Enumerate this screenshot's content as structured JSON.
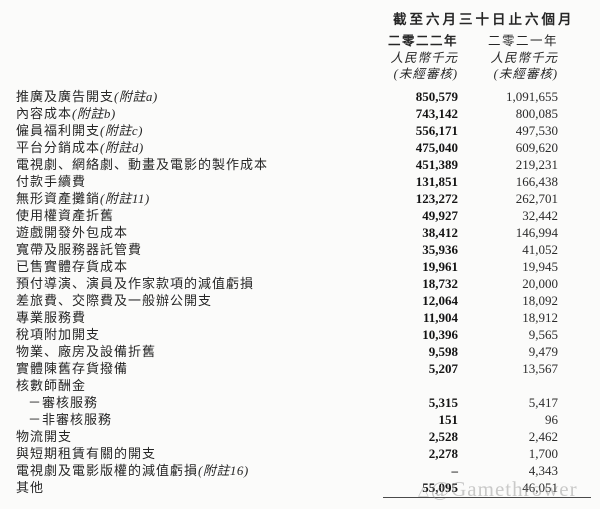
{
  "header": {
    "period_title": "截至六月三十日止六個月",
    "columns": [
      {
        "year": "二零二二年",
        "unit": "人民幣千元",
        "audited": "(未經審核)"
      },
      {
        "year": "二零二一年",
        "unit": "人民幣千元",
        "audited": "(未經審核)"
      }
    ]
  },
  "table": {
    "currency_note": "人民幣千元",
    "rows": [
      {
        "label": "推廣及廣告開支",
        "note": "(附註a)",
        "v2022": "850,579",
        "v2021": "1,091,655",
        "indent": false
      },
      {
        "label": "內容成本",
        "note": "(附註b)",
        "v2022": "743,142",
        "v2021": "800,085",
        "indent": false
      },
      {
        "label": "僱員福利開支",
        "note": "(附註c)",
        "v2022": "556,171",
        "v2021": "497,530",
        "indent": false
      },
      {
        "label": "平台分銷成本",
        "note": "(附註d)",
        "v2022": "475,040",
        "v2021": "609,620",
        "indent": false
      },
      {
        "label": "電視劇、網絡劇、動畫及電影的製作成本",
        "note": "",
        "v2022": "451,389",
        "v2021": "219,231",
        "indent": false
      },
      {
        "label": "付款手續費",
        "note": "",
        "v2022": "131,851",
        "v2021": "166,438",
        "indent": false
      },
      {
        "label": "無形資產攤銷",
        "note": "(附註11)",
        "v2022": "123,272",
        "v2021": "262,701",
        "indent": false
      },
      {
        "label": "使用權資產折舊",
        "note": "",
        "v2022": "49,927",
        "v2021": "32,442",
        "indent": false
      },
      {
        "label": "遊戲開發外包成本",
        "note": "",
        "v2022": "38,412",
        "v2021": "146,994",
        "indent": false
      },
      {
        "label": "寬帶及服務器託管費",
        "note": "",
        "v2022": "35,936",
        "v2021": "41,052",
        "indent": false
      },
      {
        "label": "已售實體存貨成本",
        "note": "",
        "v2022": "19,961",
        "v2021": "19,945",
        "indent": false
      },
      {
        "label": "預付導演、演員及作家款項的減值虧損",
        "note": "",
        "v2022": "18,732",
        "v2021": "20,000",
        "indent": false
      },
      {
        "label": "差旅費、交際費及一般辦公開支",
        "note": "",
        "v2022": "12,064",
        "v2021": "18,092",
        "indent": false
      },
      {
        "label": "專業服務費",
        "note": "",
        "v2022": "11,904",
        "v2021": "18,912",
        "indent": false
      },
      {
        "label": "稅項附加開支",
        "note": "",
        "v2022": "10,396",
        "v2021": "9,565",
        "indent": false
      },
      {
        "label": "物業、廠房及設備折舊",
        "note": "",
        "v2022": "9,598",
        "v2021": "9,479",
        "indent": false
      },
      {
        "label": "實體陳舊存貨撥備",
        "note": "",
        "v2022": "5,207",
        "v2021": "13,567",
        "indent": false
      },
      {
        "label": "核數師酬金",
        "note": "",
        "v2022": "",
        "v2021": "",
        "indent": false
      },
      {
        "label": "－審核服務",
        "note": "",
        "v2022": "5,315",
        "v2021": "5,417",
        "indent": true
      },
      {
        "label": "－非審核服務",
        "note": "",
        "v2022": "151",
        "v2021": "96",
        "indent": true
      },
      {
        "label": "物流開支",
        "note": "",
        "v2022": "2,528",
        "v2021": "2,462",
        "indent": false
      },
      {
        "label": "與短期租賃有關的開支",
        "note": "",
        "v2022": "2,278",
        "v2021": "1,700",
        "indent": false
      },
      {
        "label": "電視劇及電影版權的減值虧損",
        "note": "(附註16)",
        "v2022": "–",
        "v2021": "4,343",
        "indent": false
      },
      {
        "label": "其他",
        "note": "",
        "v2022": "55,095",
        "v2021": "46,051",
        "indent": false
      }
    ]
  },
  "watermark": {
    "logo_glyph": "△",
    "text": "@Gamethrower",
    "color": "#8c8c8c"
  }
}
